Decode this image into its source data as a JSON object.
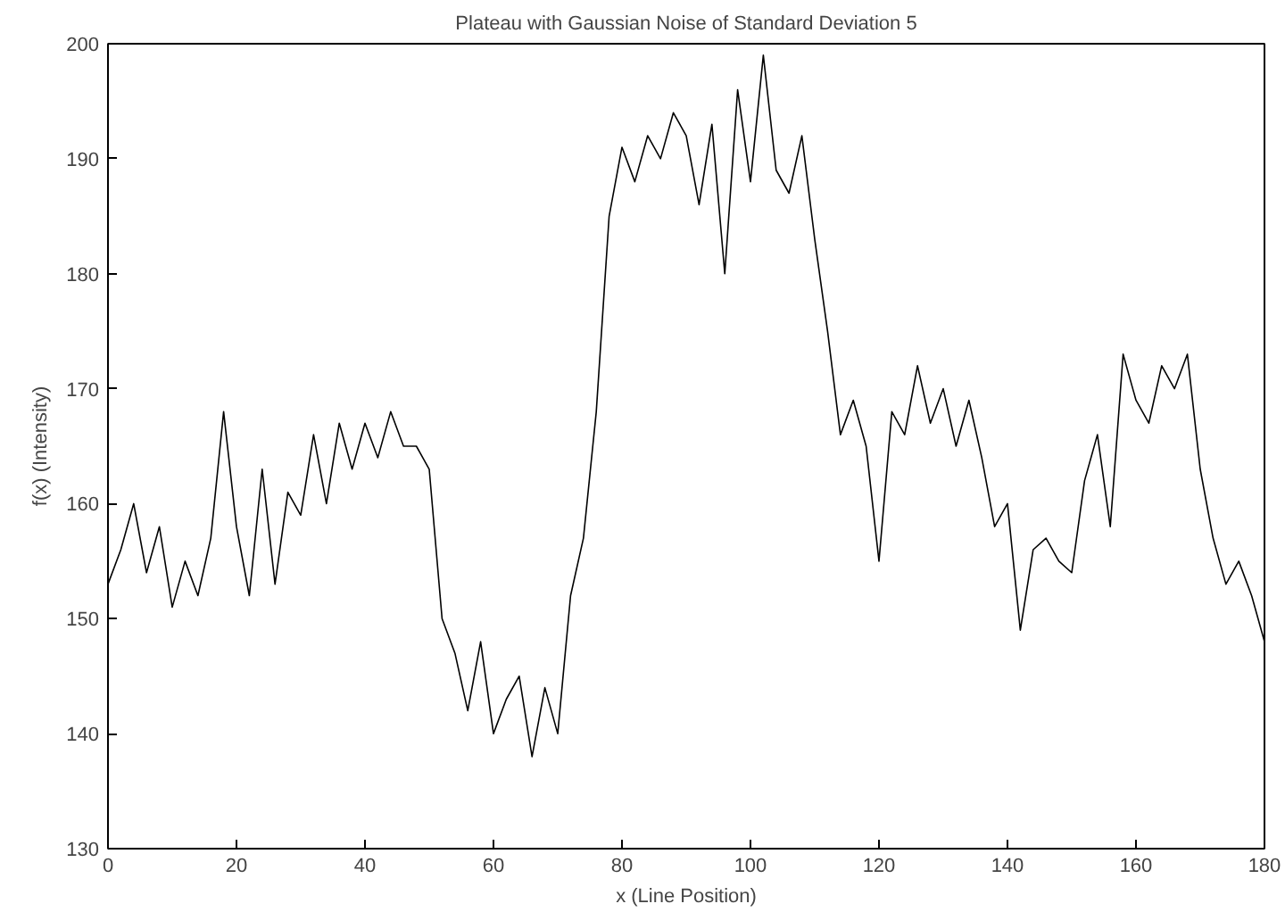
{
  "chart_data": {
    "type": "line",
    "title": "Plateau with Gaussian Noise of Standard Deviation 5",
    "xlabel": "x (Line Position)",
    "ylabel": "f(x) (Intensity)",
    "x": [
      0,
      2,
      4,
      6,
      8,
      10,
      12,
      14,
      16,
      18,
      20,
      22,
      24,
      26,
      28,
      30,
      32,
      34,
      36,
      38,
      40,
      42,
      44,
      46,
      48,
      50,
      52,
      54,
      56,
      58,
      60,
      62,
      64,
      66,
      68,
      70,
      72,
      74,
      76,
      78,
      80,
      82,
      84,
      86,
      88,
      90,
      92,
      94,
      96,
      98,
      100,
      102,
      104,
      106,
      108,
      110,
      112,
      114,
      116,
      118,
      120,
      122,
      124,
      126,
      128,
      130,
      132,
      134,
      136,
      138,
      140,
      142,
      144,
      146,
      148,
      150,
      152,
      154,
      156,
      158,
      160,
      162,
      164,
      166,
      168,
      170,
      172,
      174,
      176,
      178,
      180
    ],
    "series": [
      {
        "color": "#000000",
        "values": [
          153,
          156,
          160,
          154,
          158,
          151,
          155,
          152,
          157,
          168,
          158,
          152,
          163,
          153,
          161,
          159,
          166,
          160,
          167,
          163,
          167,
          164,
          168,
          165,
          165,
          163,
          150,
          147,
          142,
          148,
          140,
          143,
          145,
          138,
          144,
          140,
          152,
          157,
          168,
          185,
          191,
          188,
          192,
          190,
          194,
          192,
          186,
          193,
          180,
          196,
          188,
          199,
          189,
          187,
          192,
          183,
          175,
          166,
          169,
          165,
          155,
          168,
          166,
          172,
          167,
          170,
          165,
          169,
          164,
          158,
          160,
          149,
          156,
          157,
          155,
          154,
          162,
          166,
          158,
          173,
          169,
          167,
          172,
          170,
          173,
          163,
          157,
          153,
          155,
          152,
          148
        ]
      }
    ],
    "xlim": [
      0,
      180
    ],
    "ylim": [
      130,
      200
    ],
    "xticks": [
      0,
      20,
      40,
      60,
      80,
      100,
      120,
      140,
      160,
      180
    ],
    "yticks": [
      130,
      140,
      150,
      160,
      170,
      180,
      190,
      200
    ],
    "grid": false,
    "line_style": "solid",
    "marker": "none"
  }
}
